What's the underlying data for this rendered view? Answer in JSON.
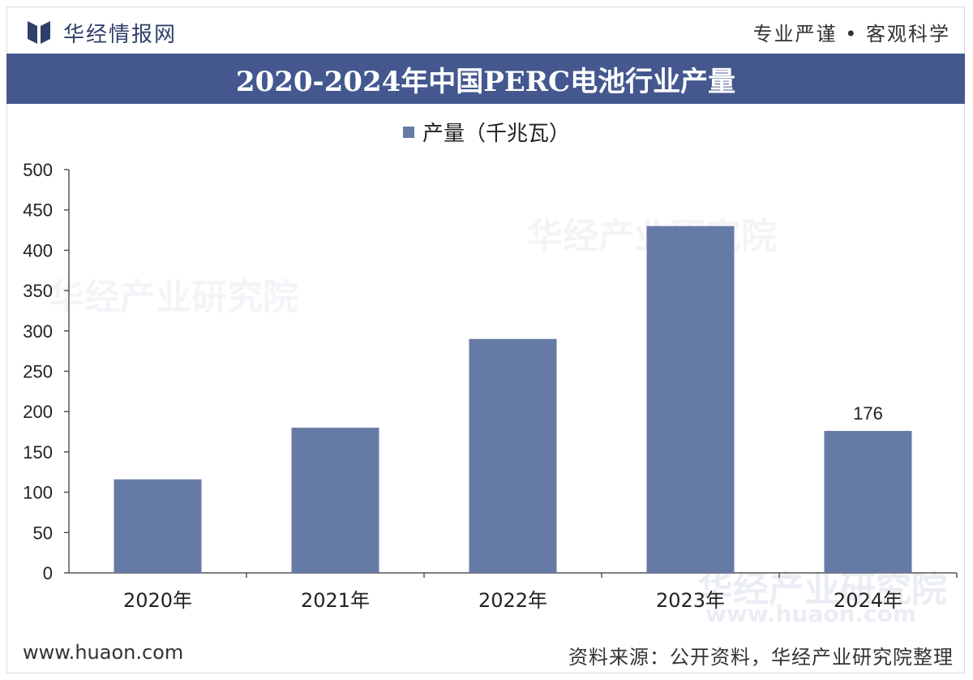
{
  "header": {
    "brand": "华经情报网",
    "tagline": "专业严谨 • 客观科学",
    "title": "2020-2024年中国PERC电池行业产量"
  },
  "watermark": {
    "text": "华经产业研究院",
    "url": "www.huaon.com"
  },
  "footer": {
    "url": "www.huaon.com",
    "source": "资料来源：公开资料，华经产业研究院整理"
  },
  "colors": {
    "bar": "#667aa6",
    "banner": "#44588f"
  },
  "chart_data": {
    "type": "bar",
    "title": "2020-2024年中国PERC电池行业产量",
    "categories": [
      "2020年",
      "2021年",
      "2022年",
      "2023年",
      "2024年"
    ],
    "series": [
      {
        "name": "产量（千兆瓦）",
        "values": [
          116,
          180,
          290,
          430,
          176
        ]
      }
    ],
    "data_labels": [
      {
        "index": 4,
        "text": "176"
      }
    ],
    "y_ticks": [
      0,
      50,
      100,
      150,
      200,
      250,
      300,
      350,
      400,
      450,
      500
    ],
    "ylim": [
      0,
      500
    ],
    "grid": false,
    "legend": "top-center"
  }
}
